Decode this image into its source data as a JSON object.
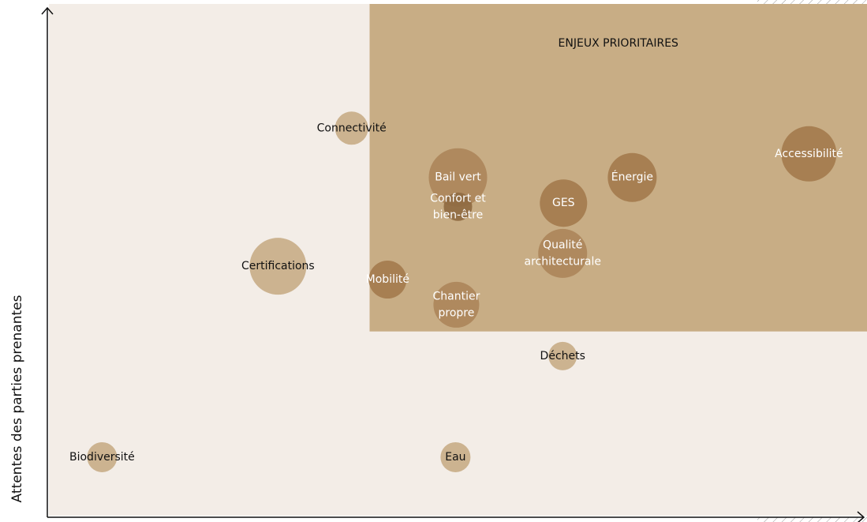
{
  "chart_data": {
    "type": "bubble",
    "y_label": "Attentes des parties prenantes",
    "xlim": [
      0,
      100
    ],
    "ylim": [
      0,
      100
    ],
    "zone": {
      "label": "ENJEUX PRIORITAIRES",
      "x": 39.2,
      "y": 36.2,
      "color": "#c8ad85"
    },
    "background": "#f3ede7",
    "points": [
      {
        "label": [
          "Connectivité"
        ],
        "x": 37.0,
        "y": 75.8,
        "size": 21,
        "color": "#c9ae89"
      },
      {
        "label": [
          "Certifications"
        ],
        "x": 28.0,
        "y": 48.9,
        "size": 36,
        "color": "#c9ae89"
      },
      {
        "label": [
          "Biodiversité"
        ],
        "x": 6.5,
        "y": 11.7,
        "size": 19,
        "color": "#c9ae89"
      },
      {
        "label": [
          "Eau"
        ],
        "x": 49.7,
        "y": 11.7,
        "size": 19,
        "color": "#c9ae89"
      },
      {
        "label": [
          "Déchets"
        ],
        "x": 62.8,
        "y": 31.4,
        "size": 18,
        "color": "#c9ae89"
      },
      {
        "label": [
          "Mobilité"
        ],
        "x": 41.4,
        "y": 46.3,
        "size": 24,
        "color": "#a47b4e"
      },
      {
        "label": [
          "Chantier",
          "propre"
        ],
        "x": 49.8,
        "y": 41.4,
        "size": 29,
        "color": "#ac865b"
      },
      {
        "label": [
          "Bail vert"
        ],
        "x": 50.0,
        "y": 66.2,
        "size": 37,
        "color": "#ac865b"
      },
      {
        "label": [
          "Confort et",
          "bien-être"
        ],
        "x": 50.0,
        "y": 60.5,
        "size": 18,
        "color": "#8f6a42"
      },
      {
        "label": [
          "GES"
        ],
        "x": 62.9,
        "y": 61.2,
        "size": 30,
        "color": "#a47b4e"
      },
      {
        "label": [
          "Qualité",
          "architecturale"
        ],
        "x": 62.8,
        "y": 51.4,
        "size": 31,
        "color": "#ac865b"
      },
      {
        "label": [
          "Énergie"
        ],
        "x": 71.3,
        "y": 66.2,
        "size": 31,
        "color": "#a47b4e"
      },
      {
        "label": [
          "Accessibilité"
        ],
        "x": 92.9,
        "y": 70.8,
        "size": 35,
        "color": "#a47b4e"
      }
    ]
  }
}
